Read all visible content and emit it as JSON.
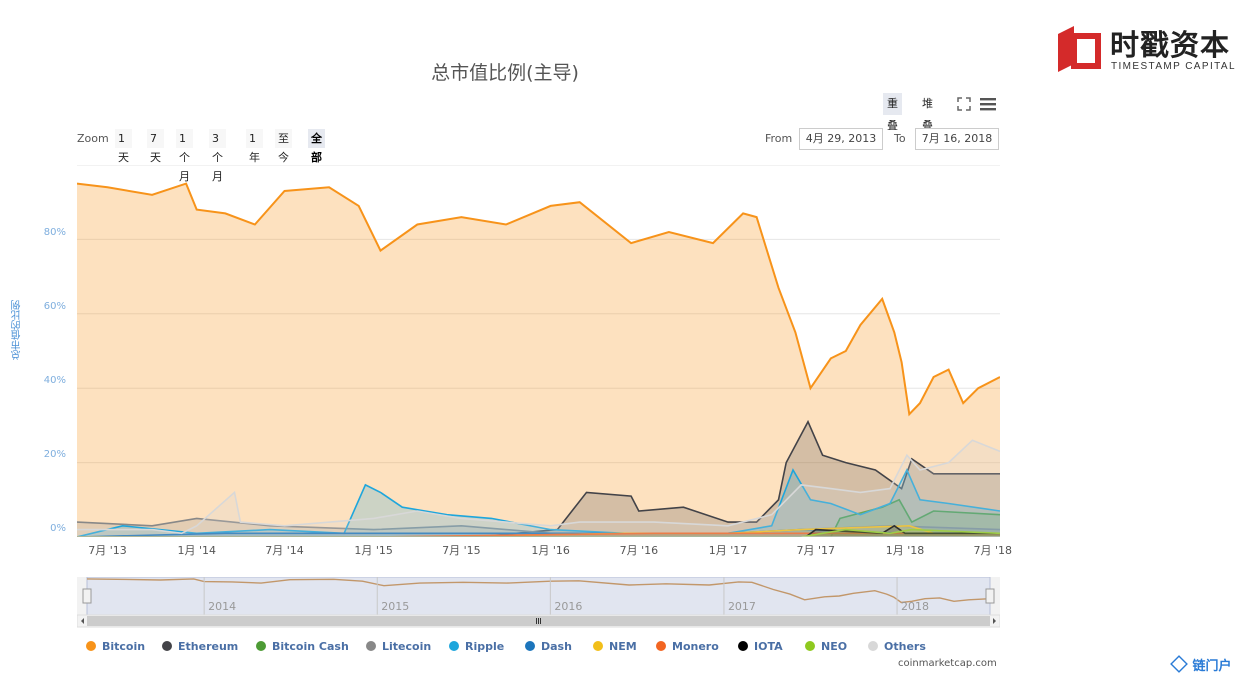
{
  "brand": {
    "name": "时戳资本",
    "sub": "TIMESTAMP CAPITAL"
  },
  "corner_logo": "链门户",
  "toolbar": {
    "overlap": "重叠",
    "stack": "堆叠",
    "fullscreen_icon": "fullscreen-icon",
    "menu_icon": "hamburger-icon"
  },
  "zoom": {
    "label": "Zoom",
    "buttons": [
      "1天",
      "7天",
      "1个月",
      "3个月",
      "1年",
      "至今",
      "全部"
    ],
    "active": "全部"
  },
  "range": {
    "from_label": "From",
    "from": "4月 29, 2013",
    "to_label": "To",
    "to": "7月 16, 2018"
  },
  "credit": "coinmarketcap.com",
  "colors": {
    "Bitcoin": "#f7931a",
    "Ethereum": "#434348",
    "Bitcoin Cash": "#4d9b35",
    "Litecoin": "#888888",
    "Ripple": "#1ea6dc",
    "Dash": "#1c75bc",
    "NEM": "#f2bf1a",
    "Monero": "#f26522",
    "IOTA": "#000000",
    "NEO": "#8fc91f",
    "Others": "#d8d8d8"
  },
  "chart_data": {
    "type": "area",
    "title": "总市值比例(主导)",
    "ylabel": "总市值的比例",
    "ylim": [
      0,
      100
    ],
    "yticks": [
      "0%",
      "20%",
      "40%",
      "60%",
      "80%"
    ],
    "xlim": [
      "2013-04-29",
      "2018-07-16"
    ],
    "xticks": [
      "7月 '13",
      "1月 '14",
      "7月 '14",
      "1月 '15",
      "7月 '15",
      "1月 '16",
      "7月 '16",
      "1月 '17",
      "7月 '17",
      "1月 '18",
      "7月 '18"
    ],
    "navigator_labels": [
      "2014",
      "2015",
      "2016",
      "2017",
      "2018"
    ],
    "legend_position": "bottom",
    "series": [
      {
        "name": "Bitcoin",
        "x": [
          "2013-04-29",
          "2013-07-01",
          "2013-10-01",
          "2013-12-10",
          "2014-01-01",
          "2014-03-01",
          "2014-05-01",
          "2014-07-01",
          "2014-10-01",
          "2014-12-01",
          "2015-01-15",
          "2015-04-01",
          "2015-07-01",
          "2015-10-01",
          "2016-01-01",
          "2016-03-01",
          "2016-06-15",
          "2016-09-01",
          "2016-12-01",
          "2017-02-01",
          "2017-03-01",
          "2017-04-15",
          "2017-05-20",
          "2017-06-20",
          "2017-08-01",
          "2017-09-01",
          "2017-10-01",
          "2017-11-15",
          "2017-12-10",
          "2017-12-25",
          "2018-01-10",
          "2018-02-01",
          "2018-03-01",
          "2018-04-01",
          "2018-05-01",
          "2018-06-01",
          "2018-07-16"
        ],
        "y": [
          95,
          94,
          92,
          95,
          88,
          87,
          84,
          93,
          94,
          89,
          77,
          84,
          86,
          84,
          89,
          90,
          79,
          82,
          79,
          87,
          86,
          67,
          55,
          40,
          48,
          50,
          57,
          64,
          55,
          47,
          33,
          36,
          43,
          45,
          36,
          40,
          43
        ]
      },
      {
        "name": "Ethereum",
        "x": [
          "2013-04-29",
          "2015-08-01",
          "2016-01-15",
          "2016-03-15",
          "2016-06-15",
          "2016-07-01",
          "2016-10-01",
          "2017-01-01",
          "2017-03-01",
          "2017-04-15",
          "2017-05-01",
          "2017-06-15",
          "2017-07-15",
          "2017-09-01",
          "2017-11-01",
          "2017-12-25",
          "2018-01-15",
          "2018-03-01",
          "2018-05-01",
          "2018-07-16"
        ],
        "y": [
          0,
          0,
          2,
          12,
          11,
          7,
          8,
          4,
          4,
          10,
          20,
          31,
          22,
          20,
          18,
          13,
          21,
          17,
          17,
          17
        ]
      },
      {
        "name": "Bitcoin Cash",
        "x": [
          "2013-04-29",
          "2017-08-01",
          "2017-08-20",
          "2017-11-15",
          "2017-12-20",
          "2018-01-15",
          "2018-03-01",
          "2018-07-16"
        ],
        "y": [
          0,
          0,
          5,
          8,
          10,
          4,
          7,
          6
        ]
      },
      {
        "name": "Litecoin",
        "x": [
          "2013-04-29",
          "2013-10-01",
          "2014-01-01",
          "2014-06-01",
          "2015-01-01",
          "2015-07-01",
          "2016-01-01",
          "2017-01-01",
          "2017-06-01",
          "2017-12-01",
          "2018-07-16"
        ],
        "y": [
          4,
          3,
          5,
          3,
          2,
          3,
          1,
          1,
          2,
          3,
          2
        ]
      },
      {
        "name": "Ripple",
        "x": [
          "2013-04-29",
          "2013-08-01",
          "2014-01-01",
          "2014-06-01",
          "2014-11-01",
          "2014-12-15",
          "2015-01-15",
          "2015-03-01",
          "2015-06-01",
          "2015-09-01",
          "2016-01-01",
          "2016-06-01",
          "2017-01-01",
          "2017-04-01",
          "2017-05-15",
          "2017-06-20",
          "2017-08-01",
          "2017-10-01",
          "2017-12-01",
          "2018-01-05",
          "2018-02-01",
          "2018-04-01",
          "2018-07-16"
        ],
        "y": [
          0,
          3,
          1,
          2,
          1,
          14,
          12,
          8,
          6,
          5,
          2,
          1,
          1,
          3,
          18,
          10,
          9,
          6,
          9,
          18,
          10,
          9,
          7
        ]
      },
      {
        "name": "Dash",
        "x": [
          "2013-04-29",
          "2014-03-01",
          "2016-01-01",
          "2017-01-01",
          "2017-06-01",
          "2018-01-01",
          "2018-07-16"
        ],
        "y": [
          0,
          1,
          1,
          1,
          2,
          1,
          1
        ]
      },
      {
        "name": "NEM",
        "x": [
          "2013-04-29",
          "2015-05-01",
          "2016-06-01",
          "2017-01-01",
          "2017-06-01",
          "2018-01-10",
          "2018-03-01",
          "2018-07-16"
        ],
        "y": [
          0,
          0,
          1,
          1,
          2,
          3,
          1,
          1
        ]
      },
      {
        "name": "Monero",
        "x": [
          "2013-04-29",
          "2015-01-01",
          "2016-08-01",
          "2017-01-01",
          "2017-06-01",
          "2018-01-01",
          "2018-07-16"
        ],
        "y": [
          0,
          0,
          1,
          1,
          1,
          1,
          1
        ]
      },
      {
        "name": "IOTA",
        "x": [
          "2013-04-29",
          "2017-06-10",
          "2017-07-01",
          "2017-11-15",
          "2017-12-10",
          "2018-01-01",
          "2018-07-16"
        ],
        "y": [
          0,
          0,
          2,
          1,
          3,
          1,
          1
        ]
      },
      {
        "name": "NEO",
        "x": [
          "2013-04-29",
          "2017-06-01",
          "2017-07-15",
          "2017-09-01",
          "2017-12-01",
          "2018-01-15",
          "2018-07-16"
        ],
        "y": [
          0,
          0,
          1,
          2,
          1,
          2,
          1
        ]
      },
      {
        "name": "Others",
        "x": [
          "2013-04-29",
          "2013-10-01",
          "2013-12-01",
          "2014-01-01",
          "2014-03-20",
          "2014-04-01",
          "2014-07-01",
          "2015-01-01",
          "2015-04-01",
          "2015-07-01",
          "2015-10-01",
          "2016-01-01",
          "2016-03-01",
          "2016-08-01",
          "2017-01-01",
          "2017-04-01",
          "2017-06-01",
          "2017-08-01",
          "2017-10-01",
          "2017-12-01",
          "2018-01-05",
          "2018-02-01",
          "2018-04-01",
          "2018-05-20",
          "2018-07-16"
        ],
        "y": [
          2,
          2,
          1,
          3,
          12,
          4,
          3,
          5,
          7,
          5,
          4,
          3,
          4,
          4,
          3,
          6,
          14,
          13,
          12,
          13,
          22,
          18,
          20,
          26,
          23
        ]
      }
    ]
  }
}
